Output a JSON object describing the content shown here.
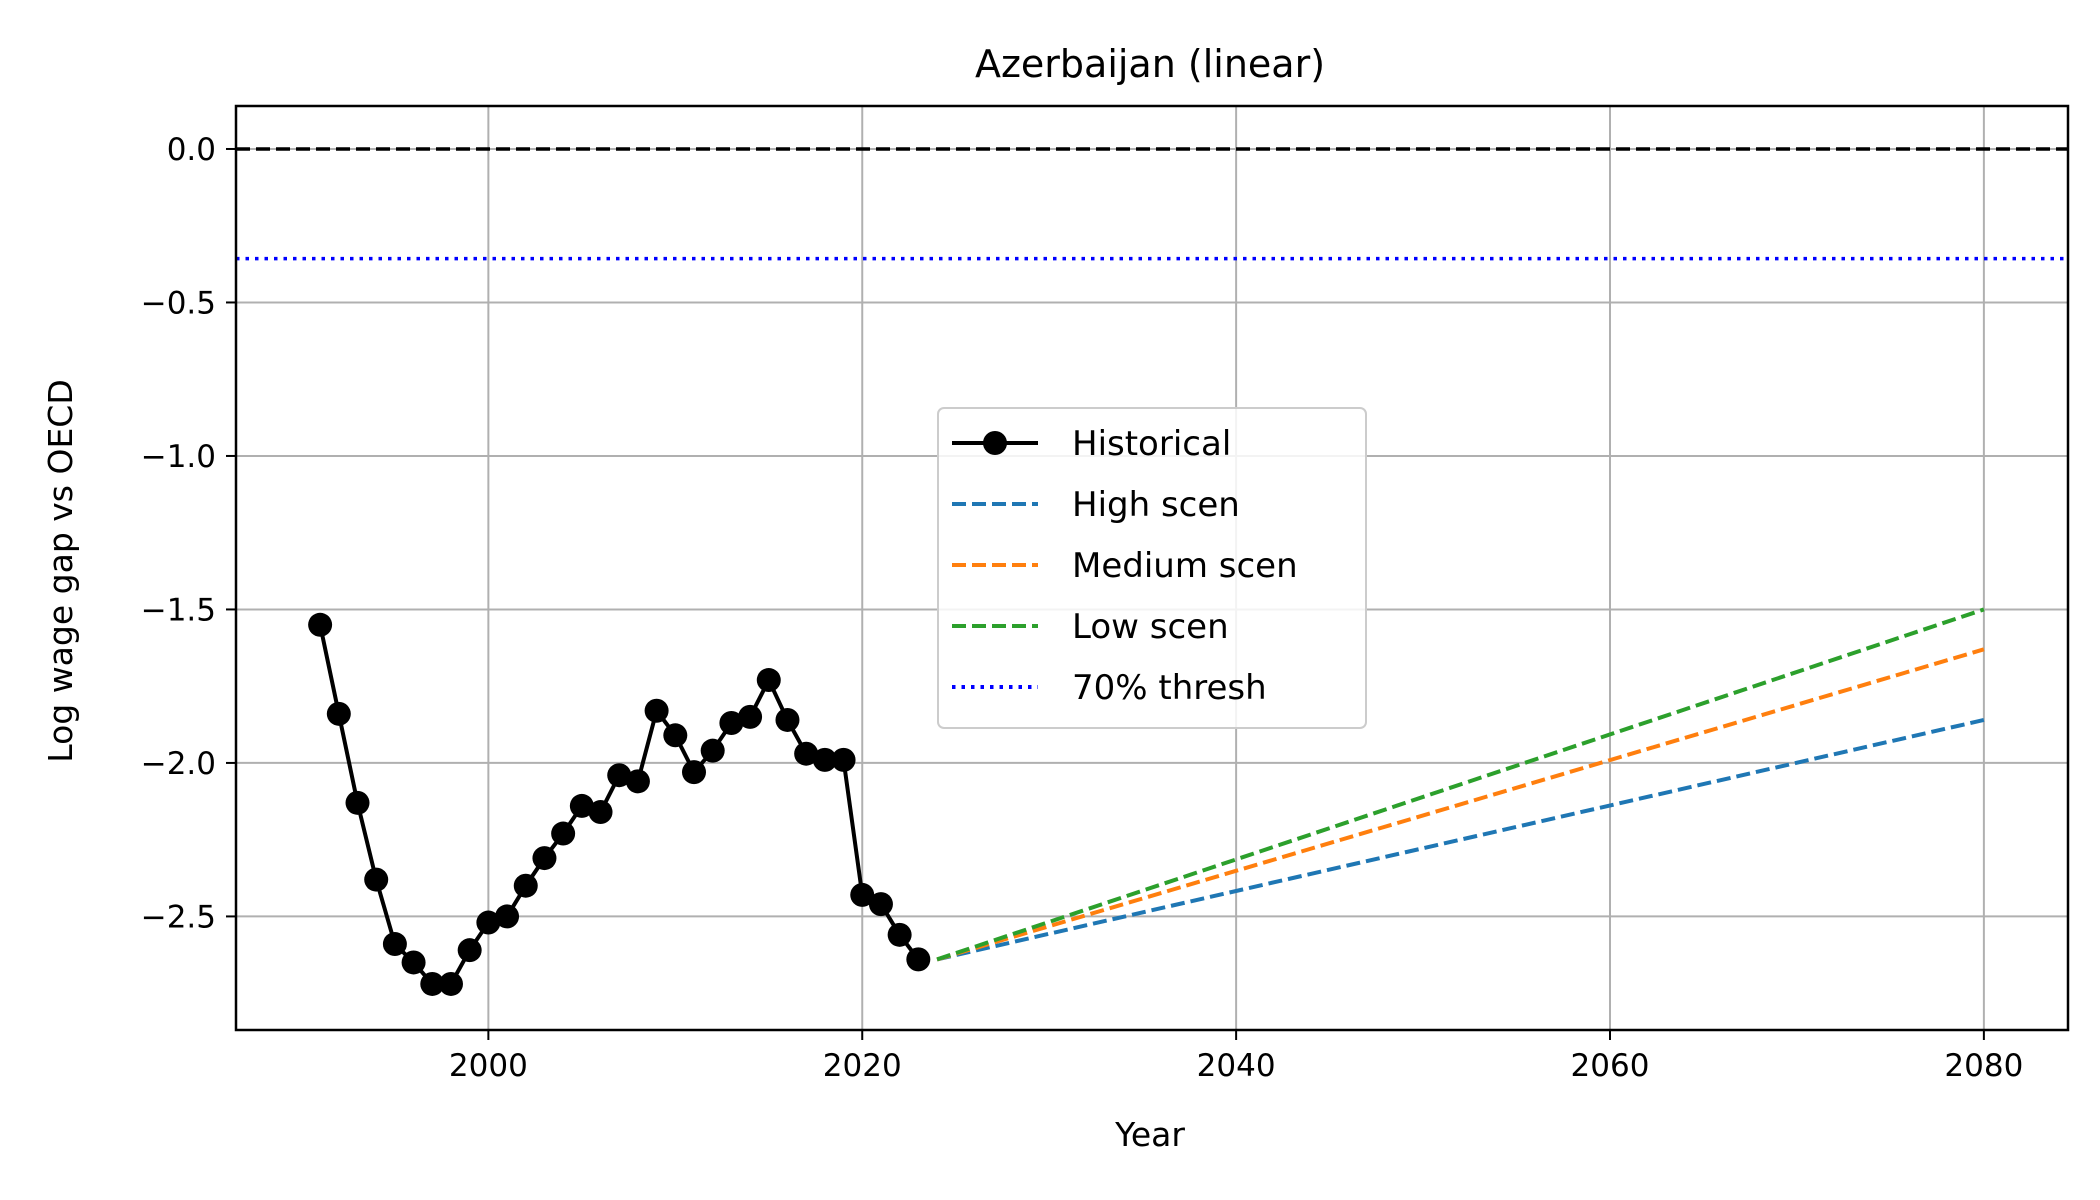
{
  "chart_data": {
    "type": "line",
    "title": "Azerbaijan (linear)",
    "xlabel": "Year",
    "ylabel": "Log wage gap vs OECD",
    "xlim": [
      1986.5,
      2084.5
    ],
    "ylim": [
      -2.87,
      0.14
    ],
    "x_ticks": [
      2000,
      2020,
      2040,
      2060,
      2080
    ],
    "y_ticks": [
      0.0,
      -0.5,
      -1.0,
      -1.5,
      -2.0,
      -2.5
    ],
    "y_tick_labels": [
      "0.0",
      "−0.5",
      "−1.0",
      "−1.5",
      "−2.0",
      "−2.5"
    ],
    "grid": true,
    "legend_position": "center",
    "series": [
      {
        "name": "Historical",
        "color": "#000000",
        "style": "solid-with-markers",
        "x": [
          1991,
          1992,
          1993,
          1994,
          1995,
          1996,
          1997,
          1998,
          1999,
          2000,
          2001,
          2002,
          2003,
          2004,
          2005,
          2006,
          2007,
          2008,
          2009,
          2010,
          2011,
          2012,
          2013,
          2014,
          2015,
          2016,
          2017,
          2018,
          2019,
          2020,
          2021,
          2022,
          2023
        ],
        "y": [
          -1.55,
          -1.84,
          -2.13,
          -2.38,
          -2.59,
          -2.65,
          -2.72,
          -2.72,
          -2.61,
          -2.52,
          -2.5,
          -2.4,
          -2.31,
          -2.23,
          -2.14,
          -2.16,
          -2.04,
          -2.06,
          -1.83,
          -1.91,
          -2.03,
          -1.96,
          -1.87,
          -1.85,
          -1.73,
          -1.86,
          -1.97,
          -1.99,
          -1.99,
          -2.43,
          -2.46,
          -2.56,
          -2.64
        ]
      },
      {
        "name": "High scen",
        "color": "#1f77b4",
        "style": "dashed",
        "x": [
          2024,
          2080
        ],
        "y": [
          -2.64,
          -1.86
        ]
      },
      {
        "name": "Medium scen",
        "color": "#ff7f0e",
        "style": "dashed",
        "x": [
          2024,
          2080
        ],
        "y": [
          -2.64,
          -1.63
        ]
      },
      {
        "name": "Low scen",
        "color": "#2ca02c",
        "style": "dashed",
        "x": [
          2024,
          2080
        ],
        "y": [
          -2.64,
          -1.5
        ]
      },
      {
        "name": "70% thresh",
        "color": "#0000ff",
        "style": "dotted",
        "hline": -0.357
      }
    ],
    "reference_line": {
      "y": 0.0,
      "color": "#000000",
      "style": "dashed"
    }
  }
}
